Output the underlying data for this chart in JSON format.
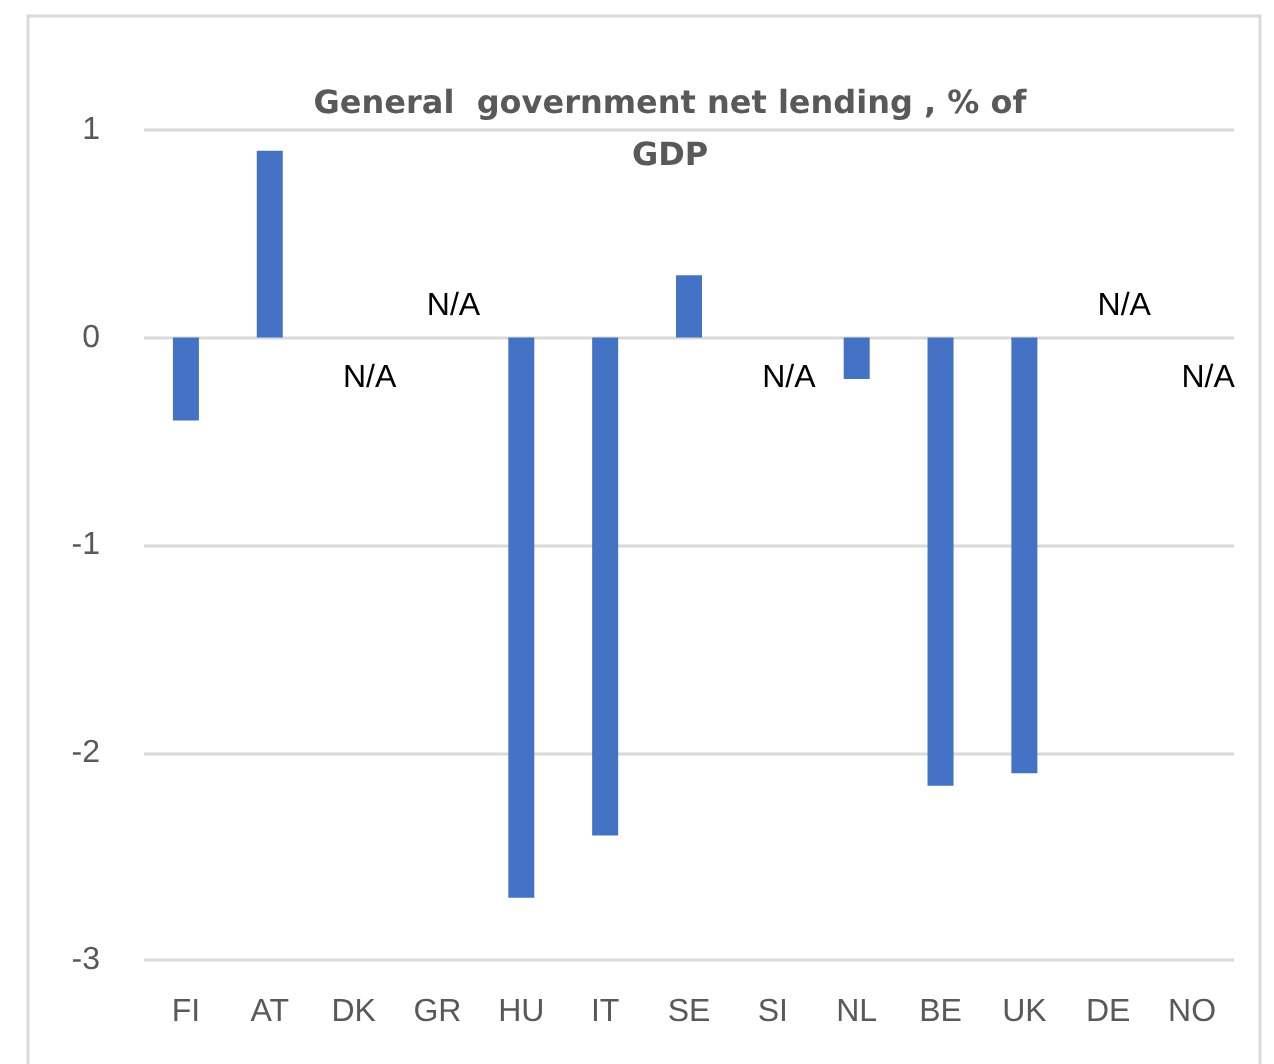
{
  "chart_data": {
    "type": "bar",
    "title": "General  government net lending , % of\nGDP",
    "categories": [
      "FI",
      "AT",
      "DK",
      "GR",
      "HU",
      "IT",
      "SE",
      "SI",
      "NL",
      "BE",
      "UK",
      "DE",
      "NO"
    ],
    "values": [
      -0.4,
      0.9,
      null,
      null,
      -2.7,
      -2.4,
      0.3,
      null,
      -0.2,
      -2.16,
      -2.1,
      null,
      null
    ],
    "color": "#4472c4",
    "value_labels": [
      null,
      null,
      "N/A",
      "N/A",
      null,
      null,
      null,
      "N/A",
      null,
      null,
      null,
      "N/A",
      "N/A"
    ],
    "ylim": [
      -3,
      1
    ],
    "yticks": [
      -3,
      -2,
      -1,
      0,
      1
    ],
    "grid": "y"
  }
}
